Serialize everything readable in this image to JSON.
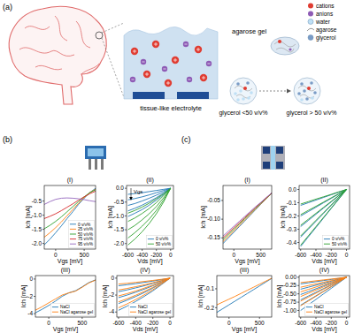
{
  "diagram": {
    "label": "(a)",
    "caption": "tissue-like electrolyte",
    "gel_label": "agarose gel",
    "glycerol_low": "glycerol <50 v/v%",
    "glycerol_high": "glycerol > 50 v/v%",
    "legend": [
      {
        "label": "cations",
        "color": "#e03c31",
        "marker": "circle"
      },
      {
        "label": "anions",
        "color": "#8e5bb5",
        "marker": "circle"
      },
      {
        "label": "water",
        "color": "#bfe0f5",
        "marker": "ring"
      },
      {
        "label": "agarose",
        "color": "#9a9a9a",
        "marker": "line"
      },
      {
        "label": "glycerol",
        "color": "#7a9cc6",
        "marker": "ring"
      }
    ]
  },
  "panels": [
    {
      "label": "(b)"
    },
    {
      "label": "(c)"
    }
  ],
  "chart_data": [
    {
      "type": "line",
      "title": "(I)",
      "x_label": "Vgs [mV]",
      "y_label": "Ich [mA]",
      "x": [
        -200,
        -100,
        0,
        100,
        200,
        300,
        400,
        500,
        600,
        700
      ],
      "xlim": [
        -200,
        700
      ],
      "xticks": [
        0,
        500
      ],
      "ylim": [
        -2.2,
        0.05
      ],
      "yticks": [
        -0.5,
        {
          "value": -1,
          "label": "-1.0"
        },
        -1.5,
        {
          "value": -2,
          "label": "-2.0"
        }
      ],
      "legend": "lower right",
      "series": [
        {
          "name": "0 v/v%",
          "color": "#1f77b4",
          "values": [
            -2.05,
            -1.85,
            -1.62,
            -1.38,
            -1.12,
            -0.88,
            -0.62,
            -0.4,
            -0.2,
            -0.05
          ]
        },
        {
          "name": "25 v/v%",
          "color": "#ff7f0e",
          "values": [
            -1.78,
            -1.62,
            -1.44,
            -1.24,
            -1.02,
            -0.8,
            -0.58,
            -0.38,
            -0.2,
            -0.08
          ]
        },
        {
          "name": "50 v/v%",
          "color": "#2ca02c",
          "values": [
            -1.48,
            -1.36,
            -1.22,
            -1.06,
            -0.88,
            -0.7,
            -0.52,
            -0.35,
            -0.2,
            -0.1
          ]
        },
        {
          "name": "75 v/v%",
          "color": "#d62728",
          "values": [
            -1.12,
            -1.04,
            -0.95,
            -0.84,
            -0.72,
            -0.6,
            -0.47,
            -0.35,
            -0.24,
            -0.15
          ]
        },
        {
          "name": "95 v/v%",
          "color": "#9467bd",
          "values": [
            -0.62,
            -0.52,
            -0.44,
            -0.4,
            -0.39,
            -0.4,
            -0.42,
            -0.45,
            -0.49,
            -0.52
          ]
        }
      ]
    },
    {
      "type": "line",
      "title": "(II)",
      "x_label": "Vds [mV]",
      "y_label": "Ich [mA]",
      "x": [
        -600,
        -500,
        -400,
        -300,
        -200,
        -100,
        0
      ],
      "xlim": [
        -620,
        40
      ],
      "xticks": [
        -600,
        -400,
        -200,
        0
      ],
      "ylim": [
        -2.2,
        0.1
      ],
      "yticks": [
        {
          "value": 0,
          "label": "0.0"
        },
        -0.5,
        {
          "value": -1,
          "label": "-1.0"
        },
        -1.5,
        {
          "value": -2,
          "label": "-2.0"
        }
      ],
      "legend": "lower right",
      "annotations": [
        {
          "text": "Vgs"
        }
      ],
      "series": [
        {
          "name": "0 v/v%",
          "color": "#1f77b4",
          "values": [
            [
              -0.22,
              -0.19,
              -0.16,
              -0.12,
              -0.08,
              -0.04,
              0
            ],
            [
              -0.42,
              -0.37,
              -0.31,
              -0.24,
              -0.16,
              -0.08,
              0
            ],
            [
              -0.62,
              -0.55,
              -0.46,
              -0.36,
              -0.25,
              -0.13,
              0
            ],
            [
              -0.82,
              -0.72,
              -0.61,
              -0.48,
              -0.34,
              -0.18,
              0
            ],
            [
              -1.02,
              -0.9,
              -0.77,
              -0.61,
              -0.43,
              -0.23,
              0
            ]
          ]
        },
        {
          "name": "50 v/v%",
          "color": "#2ca02c",
          "values": [
            [
              -0.9,
              -0.8,
              -0.68,
              -0.54,
              -0.38,
              -0.2,
              0
            ],
            [
              -1.2,
              -1.07,
              -0.91,
              -0.73,
              -0.52,
              -0.27,
              0
            ],
            [
              -1.5,
              -1.34,
              -1.14,
              -0.92,
              -0.66,
              -0.35,
              0
            ],
            [
              -1.8,
              -1.6,
              -1.37,
              -1.11,
              -0.8,
              -0.43,
              0
            ],
            [
              -2.05,
              -1.83,
              -1.57,
              -1.27,
              -0.92,
              -0.5,
              0
            ]
          ]
        }
      ]
    },
    {
      "type": "line",
      "title": "(III)",
      "x_label": "Vgs [mV]",
      "y_label": "Ich [mA]",
      "x": [
        -200,
        -100,
        0,
        100,
        200,
        300,
        400,
        500,
        600,
        700
      ],
      "xlim": [
        -200,
        700
      ],
      "xticks": [
        0,
        500
      ],
      "ylim": [
        -4.4,
        0.4
      ],
      "yticks": [
        0,
        -2,
        -4
      ],
      "legend": "lower right",
      "series": [
        {
          "name": "NaCl",
          "color": "#1f77b4",
          "values": [
            -3.9,
            -3.5,
            -3.05,
            -2.55,
            -2.0,
            -1.6,
            -1.35,
            -0.9,
            -0.4,
            -0.1
          ]
        },
        {
          "name": "NaCl agarose gel",
          "color": "#ff7f0e",
          "values": [
            -3.6,
            -3.2,
            -2.75,
            -2.3,
            -1.85,
            -1.6,
            -1.4,
            -0.95,
            -0.45,
            -0.12
          ]
        }
      ]
    },
    {
      "type": "line",
      "title": "(IV)",
      "x_label": "Vds [mV]",
      "y_label": "Ich [mA]",
      "x": [
        -600,
        -500,
        -400,
        -300,
        -200,
        -100,
        0
      ],
      "xlim": [
        -620,
        40
      ],
      "xticks": [
        -600,
        -400,
        -200,
        0
      ],
      "ylim": [
        -4.6,
        0.3
      ],
      "yticks": [
        0,
        -2,
        -4
      ],
      "legend": "lower right",
      "series": [
        {
          "name": "NaCl",
          "color": "#1f77b4",
          "values": [
            [
              -0.9,
              -0.78,
              -0.65,
              -0.5,
              -0.35,
              -0.18,
              0
            ],
            [
              -1.6,
              -1.39,
              -1.15,
              -0.9,
              -0.62,
              -0.32,
              0
            ],
            [
              -2.3,
              -2.0,
              -1.66,
              -1.3,
              -0.9,
              -0.46,
              0
            ],
            [
              -3.0,
              -2.6,
              -2.17,
              -1.7,
              -1.18,
              -0.6,
              0
            ],
            [
              -3.8,
              -3.3,
              -2.75,
              -2.15,
              -1.5,
              -0.77,
              0
            ]
          ]
        },
        {
          "name": "NaCl agarose gel",
          "color": "#ff7f0e",
          "values": [
            [
              -0.7,
              -0.61,
              -0.5,
              -0.39,
              -0.27,
              -0.14,
              0
            ],
            [
              -1.4,
              -1.22,
              -1.01,
              -0.79,
              -0.55,
              -0.28,
              0
            ],
            [
              -2.1,
              -1.83,
              -1.52,
              -1.18,
              -0.82,
              -0.42,
              0
            ],
            [
              -2.8,
              -2.43,
              -2.02,
              -1.57,
              -1.09,
              -0.56,
              0
            ],
            [
              -3.5,
              -3.04,
              -2.53,
              -1.97,
              -1.37,
              -0.7,
              0
            ]
          ]
        }
      ]
    },
    {
      "type": "line",
      "title": "(I)",
      "x_label": "Vgs [mV]",
      "y_label": "Ich [mA]",
      "x": [
        -200,
        -100,
        0,
        100,
        200,
        300,
        400,
        500,
        600,
        700
      ],
      "xlim": [
        -200,
        700
      ],
      "xticks": [
        0,
        500
      ],
      "ylim": [
        -0.18,
        -0.01
      ],
      "yticks": [
        -0.05,
        {
          "value": -0.1,
          "label": "-0.10"
        },
        -0.15
      ],
      "series": [
        {
          "color": "#1f77b4",
          "values": [
            -0.165,
            -0.15,
            -0.135,
            -0.12,
            -0.105,
            -0.09,
            -0.075,
            -0.06,
            -0.045,
            -0.03
          ]
        },
        {
          "color": "#ff7f0e",
          "values": [
            -0.16,
            -0.146,
            -0.131,
            -0.117,
            -0.102,
            -0.088,
            -0.073,
            -0.059,
            -0.045,
            -0.031
          ]
        },
        {
          "color": "#2ca02c",
          "values": [
            -0.155,
            -0.141,
            -0.127,
            -0.113,
            -0.099,
            -0.085,
            -0.071,
            -0.057,
            -0.044,
            -0.031
          ]
        },
        {
          "color": "#d62728",
          "values": [
            -0.15,
            -0.137,
            -0.123,
            -0.11,
            -0.096,
            -0.083,
            -0.069,
            -0.056,
            -0.043,
            -0.03
          ]
        },
        {
          "color": "#9467bd",
          "values": [
            -0.145,
            -0.132,
            -0.119,
            -0.106,
            -0.093,
            -0.08,
            -0.067,
            -0.055,
            -0.042,
            -0.03
          ]
        }
      ]
    },
    {
      "type": "line",
      "title": "(II)",
      "x_label": "Vds [mV]",
      "y_label": "Ich [mA]",
      "x": [
        -600,
        -500,
        -400,
        -300,
        -200,
        -100,
        0
      ],
      "xlim": [
        -620,
        40
      ],
      "xticks": [
        -600,
        -400,
        -200,
        0
      ],
      "ylim": [
        -0.45,
        0.03
      ],
      "yticks": [
        {
          "value": 0,
          "label": "0.0"
        },
        -0.1,
        -0.2,
        -0.3,
        -0.4
      ],
      "legend": "lower right",
      "series": [
        {
          "name": "0 v/v%",
          "color": "#1f77b4",
          "values": [
            [
              -0.12,
              -0.1,
              -0.08,
              -0.06,
              -0.04,
              -0.02,
              0
            ],
            [
              -0.2,
              -0.167,
              -0.134,
              -0.1,
              -0.067,
              -0.034,
              0
            ],
            [
              -0.28,
              -0.234,
              -0.187,
              -0.14,
              -0.094,
              -0.047,
              0
            ],
            [
              -0.36,
              -0.3,
              -0.24,
              -0.18,
              -0.12,
              -0.06,
              0
            ],
            [
              -0.43,
              -0.358,
              -0.287,
              -0.215,
              -0.143,
              -0.072,
              0
            ]
          ]
        },
        {
          "name": "50 v/v%",
          "color": "#2ca02c",
          "values": [
            [
              -0.11,
              -0.092,
              -0.073,
              -0.055,
              -0.037,
              -0.018,
              0
            ],
            [
              -0.19,
              -0.158,
              -0.127,
              -0.095,
              -0.063,
              -0.032,
              0
            ],
            [
              -0.27,
              -0.225,
              -0.18,
              -0.135,
              -0.09,
              -0.045,
              0
            ],
            [
              -0.35,
              -0.292,
              -0.233,
              -0.175,
              -0.117,
              -0.058,
              0
            ],
            [
              -0.42,
              -0.35,
              -0.28,
              -0.21,
              -0.14,
              -0.07,
              0
            ]
          ]
        }
      ]
    },
    {
      "type": "line",
      "title": "(III)",
      "x_label": "Vgs [mV]",
      "y_label": "Ich [mA]",
      "x": [
        -200,
        -100,
        0,
        100,
        200,
        300,
        400,
        500,
        600,
        700
      ],
      "xlim": [
        -200,
        700
      ],
      "xticks": [
        0,
        500
      ],
      "ylim": [
        -0.25,
        -0.03
      ],
      "yticks": [
        -0.1,
        -0.2
      ],
      "series": [
        {
          "color": "#1f77b4",
          "values": [
            -0.225,
            -0.205,
            -0.185,
            -0.165,
            -0.145,
            -0.125,
            -0.105,
            -0.085,
            -0.065,
            -0.045
          ]
        },
        {
          "color": "#ff7f0e",
          "values": [
            -0.185,
            -0.17,
            -0.155,
            -0.14,
            -0.124,
            -0.108,
            -0.092,
            -0.076,
            -0.06,
            -0.044
          ]
        }
      ]
    },
    {
      "type": "line",
      "title": "(IV)",
      "x_label": "Vds [mV]",
      "y_label": "Ich [mA]",
      "x": [
        -600,
        -500,
        -400,
        -300,
        -200,
        -100,
        0
      ],
      "xlim": [
        -620,
        40
      ],
      "xticks": [
        -600,
        -400,
        -200,
        0
      ],
      "ylim": [
        -1.2,
        0.05
      ],
      "yticks": [
        {
          "value": 0,
          "label": "0.00"
        },
        -0.25,
        {
          "value": -0.5,
          "label": "-0.50"
        },
        -0.75,
        {
          "value": -1,
          "label": "-1.00"
        }
      ],
      "legend": "lower right",
      "series": [
        {
          "name": "NaCl",
          "color": "#1f77b4",
          "values": [
            [
              -0.2,
              -0.167,
              -0.134,
              -0.1,
              -0.067,
              -0.034,
              0
            ],
            [
              -0.36,
              -0.3,
              -0.24,
              -0.18,
              -0.12,
              -0.06,
              0
            ],
            [
              -0.52,
              -0.434,
              -0.347,
              -0.26,
              -0.174,
              -0.087,
              0
            ],
            [
              -0.68,
              -0.567,
              -0.454,
              -0.34,
              -0.227,
              -0.114,
              0
            ],
            [
              -0.84,
              -0.7,
              -0.56,
              -0.42,
              -0.28,
              -0.14,
              0
            ],
            [
              -1.0,
              -0.834,
              -0.667,
              -0.5,
              -0.334,
              -0.167,
              0
            ]
          ]
        },
        {
          "name": "NaCl agarose gel",
          "color": "#ff7f0e",
          "values": [
            [
              -0.16,
              -0.134,
              -0.107,
              -0.08,
              -0.054,
              -0.027,
              0
            ],
            [
              -0.3,
              -0.25,
              -0.2,
              -0.15,
              -0.1,
              -0.05,
              0
            ],
            [
              -0.44,
              -0.367,
              -0.294,
              -0.22,
              -0.147,
              -0.074,
              0
            ],
            [
              -0.58,
              -0.484,
              -0.387,
              -0.29,
              -0.194,
              -0.097,
              0
            ],
            [
              -0.72,
              -0.6,
              -0.48,
              -0.36,
              -0.24,
              -0.12,
              0
            ],
            [
              -0.86,
              -0.717,
              -0.574,
              -0.43,
              -0.287,
              -0.144,
              0
            ]
          ]
        }
      ]
    }
  ]
}
